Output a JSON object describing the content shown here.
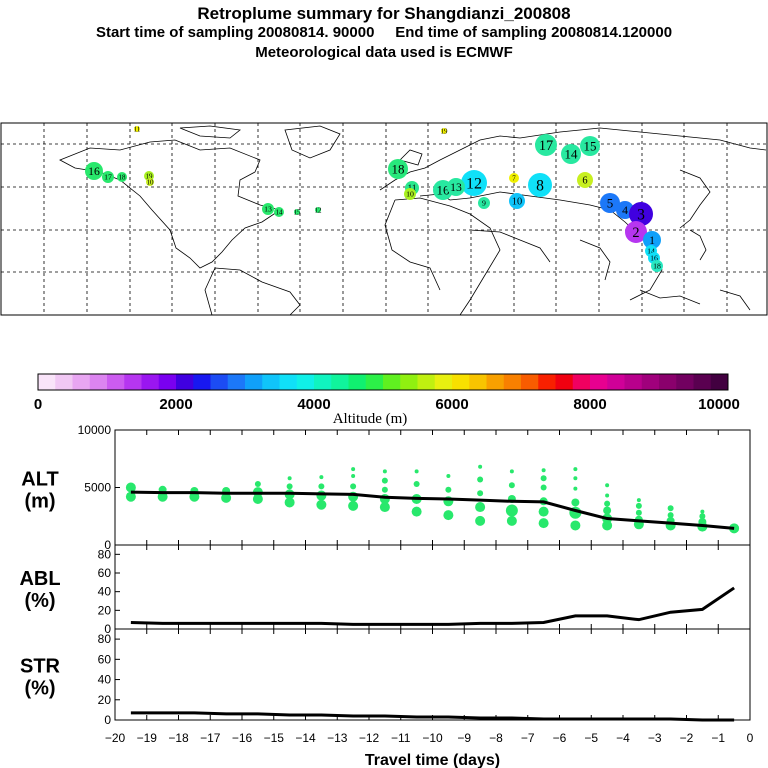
{
  "header": {
    "title": "Retroplume summary for Shangdianzi_200808",
    "line2": "Start time of sampling 20080814. 90000     End time of sampling 20080814.120000",
    "line3": "Meteorological data used is ECMWF"
  },
  "colorbar": {
    "label": "Altitude (m)",
    "ticks": [
      "0",
      "2000",
      "4000",
      "6000",
      "8000",
      "10000"
    ],
    "colors": [
      "#f9e4f9",
      "#f1c8f4",
      "#e8a6f2",
      "#dc84f0",
      "#cc5cf0",
      "#b636f0",
      "#9a16f0",
      "#7a00f0",
      "#4000e0",
      "#1818f0",
      "#1c4cf4",
      "#1c78f8",
      "#10a0fa",
      "#10c4fa",
      "#10e0f8",
      "#10f0e8",
      "#10f4c0",
      "#10f49c",
      "#10f070",
      "#2cf048",
      "#60f020",
      "#90f010",
      "#c0f010",
      "#e8f010",
      "#f8e000",
      "#f8c400",
      "#f8a000",
      "#f88000",
      "#f85c00",
      "#f82000",
      "#f00010",
      "#f00060",
      "#e80090",
      "#d00098",
      "#b8008c",
      "#a0007c",
      "#8a006c",
      "#720060",
      "#5a0050",
      "#420040"
    ]
  },
  "map": {
    "markers": [
      {
        "label": "11",
        "color": "#f0f000"
      },
      {
        "label": "16",
        "color": "#28e86c"
      },
      {
        "label": "17",
        "color": "#28e86c"
      },
      {
        "label": "18",
        "color": "#28e86c"
      },
      {
        "label": "19",
        "color": "#a8f020"
      },
      {
        "label": "10",
        "color": "#c8f020"
      },
      {
        "label": "13",
        "color": "#28e86c"
      },
      {
        "label": "14",
        "color": "#28e86c"
      },
      {
        "label": "15",
        "color": "#28e86c"
      },
      {
        "label": "12",
        "color": "#28e86c"
      },
      {
        "label": "18",
        "color": "#28e87c"
      },
      {
        "label": "11",
        "color": "#28e88c"
      },
      {
        "label": "10",
        "color": "#a8f020"
      },
      {
        "label": "16",
        "color": "#28e8a0"
      },
      {
        "label": "12",
        "color": "#10e0f8"
      },
      {
        "label": "13",
        "color": "#28e8a0"
      },
      {
        "label": "9",
        "color": "#28e8a0"
      },
      {
        "label": "10",
        "color": "#10c4fa"
      },
      {
        "label": "19",
        "color": "#f0f000"
      },
      {
        "label": "17",
        "color": "#28e8a0"
      },
      {
        "label": "14",
        "color": "#28e8a0"
      },
      {
        "label": "15",
        "color": "#28e8a0"
      },
      {
        "label": "8",
        "color": "#10e0f8"
      },
      {
        "label": "6",
        "color": "#c8f020"
      },
      {
        "label": "7",
        "color": "#f0f000"
      },
      {
        "label": "5",
        "color": "#1c78f8"
      },
      {
        "label": "4",
        "color": "#1c78f8"
      },
      {
        "label": "3",
        "color": "#4000e0"
      },
      {
        "label": "2",
        "color": "#b636f0"
      },
      {
        "label": "1",
        "color": "#10a0fa"
      },
      {
        "label": "14",
        "color": "#10e0f8"
      },
      {
        "label": "16",
        "color": "#10e0f8"
      },
      {
        "label": "18",
        "color": "#28e8c0"
      }
    ]
  },
  "chart_data": [
    {
      "type": "line",
      "title": "ALT (m)",
      "ylabel": "ALT (m)",
      "ylim": [
        0,
        10000
      ],
      "yticks": [
        "0",
        "5000",
        "10000"
      ],
      "x": [
        -19.5,
        -18.5,
        -17.5,
        -16.5,
        -15.5,
        -14.5,
        -13.5,
        -12.5,
        -11.5,
        -10.5,
        -9.5,
        -8.5,
        -7.5,
        -6.5,
        -5.5,
        -4.5,
        -3.5,
        -2.5,
        -1.5,
        -0.5
      ],
      "values": [
        4600,
        4550,
        4550,
        4500,
        4500,
        4500,
        4450,
        4400,
        4150,
        4050,
        4000,
        3900,
        3800,
        3750,
        3000,
        2300,
        2100,
        1900,
        1700,
        1450
      ],
      "scatter": {
        "color": "#28e86c",
        "points": [
          {
            "x": -19.5,
            "y": 4200,
            "s": 5
          },
          {
            "x": -19.5,
            "y": 5000,
            "s": 5
          },
          {
            "x": -18.5,
            "y": 4200,
            "s": 5
          },
          {
            "x": -18.5,
            "y": 4800,
            "s": 4
          },
          {
            "x": -17.5,
            "y": 4200,
            "s": 5
          },
          {
            "x": -17.5,
            "y": 4700,
            "s": 4
          },
          {
            "x": -16.5,
            "y": 4100,
            "s": 5
          },
          {
            "x": -16.5,
            "y": 4700,
            "s": 4
          },
          {
            "x": -15.5,
            "y": 4000,
            "s": 5
          },
          {
            "x": -15.5,
            "y": 4600,
            "s": 5
          },
          {
            "x": -15.5,
            "y": 5300,
            "s": 3
          },
          {
            "x": -14.5,
            "y": 3700,
            "s": 5
          },
          {
            "x": -14.5,
            "y": 4400,
            "s": 5
          },
          {
            "x": -14.5,
            "y": 5100,
            "s": 3
          },
          {
            "x": -14.5,
            "y": 5800,
            "s": 2
          },
          {
            "x": -13.5,
            "y": 3500,
            "s": 5
          },
          {
            "x": -13.5,
            "y": 4300,
            "s": 5
          },
          {
            "x": -13.5,
            "y": 5100,
            "s": 3
          },
          {
            "x": -13.5,
            "y": 5900,
            "s": 2
          },
          {
            "x": -12.5,
            "y": 3400,
            "s": 5
          },
          {
            "x": -12.5,
            "y": 4200,
            "s": 5
          },
          {
            "x": -12.5,
            "y": 5100,
            "s": 3
          },
          {
            "x": -12.5,
            "y": 6000,
            "s": 2
          },
          {
            "x": -12.5,
            "y": 6600,
            "s": 2
          },
          {
            "x": -11.5,
            "y": 3300,
            "s": 5
          },
          {
            "x": -11.5,
            "y": 4000,
            "s": 5
          },
          {
            "x": -11.5,
            "y": 4800,
            "s": 3
          },
          {
            "x": -11.5,
            "y": 5600,
            "s": 3
          },
          {
            "x": -11.5,
            "y": 6400,
            "s": 2
          },
          {
            "x": -10.5,
            "y": 2900,
            "s": 5
          },
          {
            "x": -10.5,
            "y": 4000,
            "s": 5
          },
          {
            "x": -10.5,
            "y": 5300,
            "s": 3
          },
          {
            "x": -10.5,
            "y": 6400,
            "s": 2
          },
          {
            "x": -9.5,
            "y": 2600,
            "s": 5
          },
          {
            "x": -9.5,
            "y": 3800,
            "s": 5
          },
          {
            "x": -9.5,
            "y": 4800,
            "s": 3
          },
          {
            "x": -9.5,
            "y": 6000,
            "s": 2
          },
          {
            "x": -8.5,
            "y": 2100,
            "s": 5
          },
          {
            "x": -8.5,
            "y": 3300,
            "s": 5
          },
          {
            "x": -8.5,
            "y": 4500,
            "s": 3
          },
          {
            "x": -8.5,
            "y": 5700,
            "s": 3
          },
          {
            "x": -8.5,
            "y": 6800,
            "s": 2
          },
          {
            "x": -7.5,
            "y": 2100,
            "s": 5
          },
          {
            "x": -7.5,
            "y": 3000,
            "s": 6
          },
          {
            "x": -7.5,
            "y": 4000,
            "s": 4
          },
          {
            "x": -7.5,
            "y": 5200,
            "s": 3
          },
          {
            "x": -7.5,
            "y": 6400,
            "s": 2
          },
          {
            "x": -6.5,
            "y": 1900,
            "s": 5
          },
          {
            "x": -6.5,
            "y": 2900,
            "s": 5
          },
          {
            "x": -6.5,
            "y": 3800,
            "s": 4
          },
          {
            "x": -6.5,
            "y": 5000,
            "s": 3
          },
          {
            "x": -6.5,
            "y": 5800,
            "s": 3
          },
          {
            "x": -6.5,
            "y": 6500,
            "s": 2
          },
          {
            "x": -5.5,
            "y": 1700,
            "s": 5
          },
          {
            "x": -5.5,
            "y": 2800,
            "s": 6
          },
          {
            "x": -5.5,
            "y": 3700,
            "s": 4
          },
          {
            "x": -5.5,
            "y": 4900,
            "s": 2
          },
          {
            "x": -5.5,
            "y": 5800,
            "s": 2
          },
          {
            "x": -5.5,
            "y": 6600,
            "s": 2
          },
          {
            "x": -4.5,
            "y": 1700,
            "s": 5
          },
          {
            "x": -4.5,
            "y": 2300,
            "s": 5
          },
          {
            "x": -4.5,
            "y": 3000,
            "s": 4
          },
          {
            "x": -4.5,
            "y": 3600,
            "s": 3
          },
          {
            "x": -4.5,
            "y": 4300,
            "s": 2
          },
          {
            "x": -4.5,
            "y": 5200,
            "s": 2
          },
          {
            "x": -3.5,
            "y": 1800,
            "s": 5
          },
          {
            "x": -3.5,
            "y": 2200,
            "s": 4
          },
          {
            "x": -3.5,
            "y": 2800,
            "s": 3
          },
          {
            "x": -3.5,
            "y": 3400,
            "s": 3
          },
          {
            "x": -3.5,
            "y": 3900,
            "s": 2
          },
          {
            "x": -2.5,
            "y": 1700,
            "s": 5
          },
          {
            "x": -2.5,
            "y": 2100,
            "s": 4
          },
          {
            "x": -2.5,
            "y": 2600,
            "s": 3
          },
          {
            "x": -2.5,
            "y": 3200,
            "s": 3
          },
          {
            "x": -1.5,
            "y": 1600,
            "s": 5
          },
          {
            "x": -1.5,
            "y": 2000,
            "s": 4
          },
          {
            "x": -1.5,
            "y": 2500,
            "s": 3
          },
          {
            "x": -1.5,
            "y": 2900,
            "s": 2
          },
          {
            "x": -0.5,
            "y": 1450,
            "s": 5
          }
        ]
      }
    },
    {
      "type": "line",
      "title": "ABL (%)",
      "ylabel": "ABL (%)",
      "ylim": [
        0,
        90
      ],
      "yticks": [
        "0",
        "20",
        "40",
        "60",
        "80"
      ],
      "x": [
        -19.5,
        -18.5,
        -17.5,
        -16.5,
        -15.5,
        -14.5,
        -13.5,
        -12.5,
        -11.5,
        -10.5,
        -9.5,
        -8.5,
        -7.5,
        -6.5,
        -5.5,
        -4.5,
        -3.5,
        -2.5,
        -1.5,
        -0.5
      ],
      "values": [
        7,
        6,
        6,
        6,
        6,
        6,
        6,
        5,
        5,
        5,
        5,
        6,
        6,
        7,
        14,
        14,
        10,
        18,
        21,
        44
      ]
    },
    {
      "type": "line",
      "title": "STR (%)",
      "ylabel": "STR (%)",
      "ylim": [
        0,
        90
      ],
      "yticks": [
        "0",
        "20",
        "40",
        "60",
        "80"
      ],
      "xlabel": "Travel time (days)",
      "xticks": [
        "−20",
        "−19",
        "−18",
        "−17",
        "−16",
        "−15",
        "−14",
        "−13",
        "−12",
        "−11",
        "−10",
        "−9",
        "−8",
        "−7",
        "−6",
        "−5",
        "−4",
        "−3",
        "−2",
        "−1",
        "0"
      ],
      "x": [
        -19.5,
        -18.5,
        -17.5,
        -16.5,
        -15.5,
        -14.5,
        -13.5,
        -12.5,
        -11.5,
        -10.5,
        -9.5,
        -8.5,
        -7.5,
        -6.5,
        -5.5,
        -4.5,
        -3.5,
        -2.5,
        -1.5,
        -0.5
      ],
      "values": [
        7,
        7,
        7,
        6,
        6,
        5,
        5,
        4,
        4,
        3,
        3,
        2,
        2,
        1,
        1,
        1,
        1,
        1,
        0,
        0
      ]
    }
  ]
}
